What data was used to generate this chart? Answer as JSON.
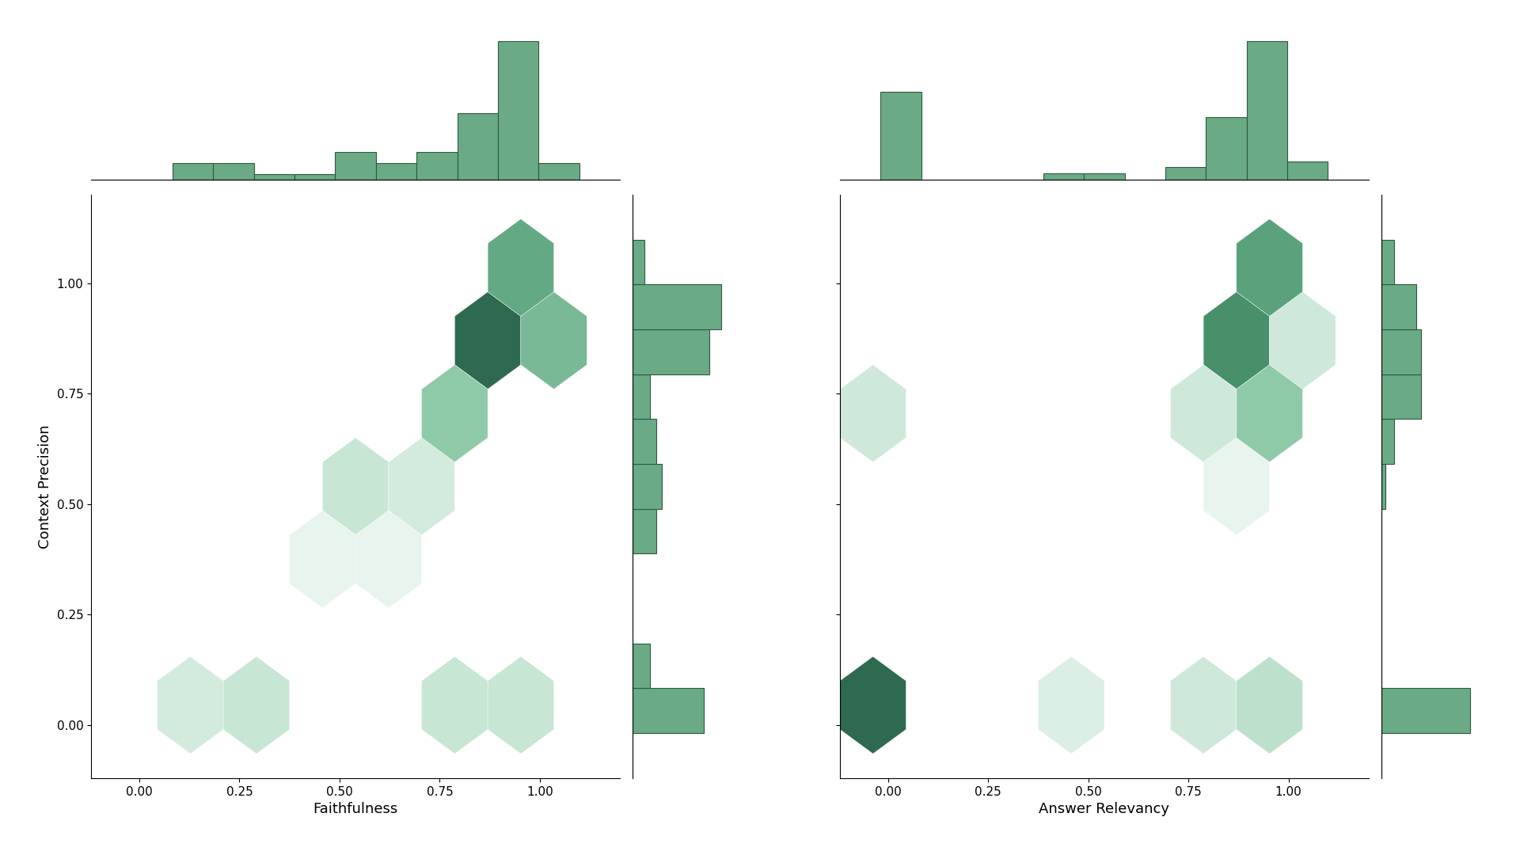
{
  "hist_color": "#6aab85",
  "hist_edge_color": "#2d5a3d",
  "background": "white",
  "figsize": [
    19.2,
    10.8
  ],
  "dpi": 100,
  "cmap": "YlGn",
  "xlabel1": "Faithfulness",
  "xlabel2": "Answer Relevancy",
  "ylabel": "Context Precision",
  "tick_fontsize": 11,
  "label_fontsize": 13,
  "xlim": [
    -0.12,
    1.2
  ],
  "ylim": [
    -0.12,
    1.2
  ],
  "gridsize": 8
}
